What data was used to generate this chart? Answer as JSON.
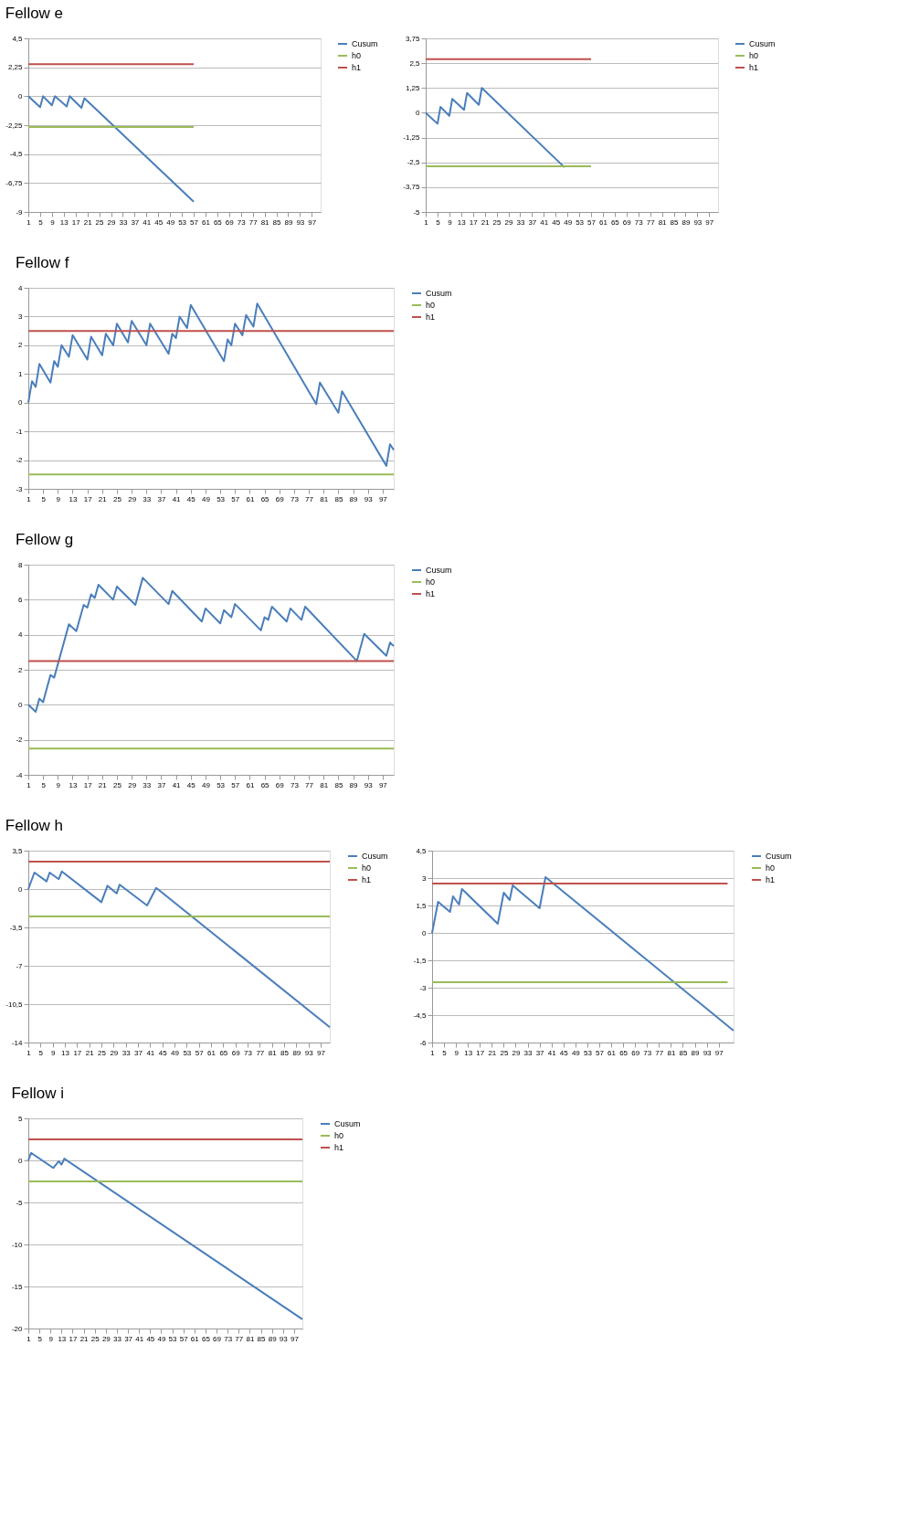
{
  "chart_data": [
    {
      "type": "line",
      "title": "Fellow e",
      "xlim": [
        1,
        100
      ],
      "xticks": [
        1,
        5,
        9,
        13,
        17,
        21,
        25,
        29,
        33,
        37,
        41,
        45,
        49,
        53,
        57,
        61,
        65,
        69,
        73,
        77,
        81,
        85,
        89,
        93,
        97
      ],
      "ylim": [
        -9,
        4.5
      ],
      "yticks": [
        -9,
        {
          "value": -6.75,
          "label": "-6,75"
        },
        {
          "value": -4.5,
          "label": "-4,5"
        },
        {
          "value": -2.25,
          "label": "-2,25"
        },
        0,
        {
          "value": 2.25,
          "label": "2,25"
        },
        {
          "value": 4.5,
          "label": "4,5"
        }
      ],
      "grid": "y",
      "legend": "right",
      "line_style": "solid",
      "series": [
        {
          "name": "Cusum",
          "color": "#4a7ebb",
          "x": [
            1,
            5,
            6,
            9,
            10,
            14,
            15,
            19,
            20,
            57
          ],
          "values": [
            0,
            -0.85,
            0,
            -0.7,
            0,
            -0.8,
            0,
            -0.9,
            -0.15,
            -8.2
          ]
        },
        {
          "name": "h0",
          "color": "#9bbb59",
          "x": [
            1,
            57
          ],
          "values": [
            -2.4,
            -2.4
          ]
        },
        {
          "name": "h1",
          "color": "#c0504d",
          "x": [
            1,
            57
          ],
          "values": [
            2.5,
            2.5
          ]
        }
      ]
    },
    {
      "type": "line",
      "xlim": [
        1,
        100
      ],
      "xticks": [
        1,
        5,
        9,
        13,
        17,
        21,
        25,
        29,
        33,
        37,
        41,
        45,
        49,
        53,
        57,
        61,
        65,
        69,
        73,
        77,
        81,
        85,
        89,
        93,
        97
      ],
      "ylim": [
        -5,
        3.75
      ],
      "yticks": [
        -5,
        {
          "value": -3.75,
          "label": "-3,75"
        },
        {
          "value": -2.5,
          "label": "-2,5"
        },
        {
          "value": -1.25,
          "label": "-1,25"
        },
        0,
        {
          "value": 1.25,
          "label": "1,25"
        },
        {
          "value": 2.5,
          "label": "2,5"
        },
        {
          "value": 3.75,
          "label": "3,75"
        }
      ],
      "grid": "y",
      "legend": "right",
      "line_style": "solid",
      "series": [
        {
          "name": "Cusum",
          "color": "#4a7ebb",
          "x": [
            1,
            5,
            6,
            9,
            10,
            14,
            15,
            19,
            20,
            48
          ],
          "values": [
            0,
            -0.55,
            0.3,
            -0.15,
            0.7,
            0.15,
            1.0,
            0.4,
            1.25,
            -2.75
          ]
        },
        {
          "name": "h0",
          "color": "#9bbb59",
          "x": [
            1,
            57
          ],
          "values": [
            -2.7,
            -2.7
          ]
        },
        {
          "name": "h1",
          "color": "#c0504d",
          "x": [
            1,
            57
          ],
          "values": [
            2.7,
            2.7
          ]
        }
      ]
    },
    {
      "type": "line",
      "title": "Fellow f",
      "xlim": [
        1,
        100
      ],
      "xticks": [
        1,
        5,
        9,
        13,
        17,
        21,
        25,
        29,
        33,
        37,
        41,
        45,
        49,
        53,
        57,
        61,
        65,
        69,
        73,
        77,
        81,
        85,
        89,
        93,
        97
      ],
      "ylim": [
        -3,
        4
      ],
      "yticks": [
        -3,
        -2,
        -1,
        0,
        1,
        2,
        3,
        4
      ],
      "grid": "y",
      "legend": "right",
      "line_style": "solid",
      "series": [
        {
          "name": "Cusum",
          "color": "#4a7ebb",
          "x": [
            1,
            2,
            3,
            4,
            7,
            8,
            9,
            10,
            12,
            13,
            17,
            18,
            21,
            22,
            24,
            25,
            28,
            29,
            33,
            34,
            39,
            40,
            41,
            42,
            44,
            45,
            54,
            55,
            56,
            57,
            59,
            60,
            62,
            63,
            79,
            80,
            85,
            86,
            98,
            99,
            100
          ],
          "values": [
            0,
            0.75,
            0.55,
            1.35,
            0.7,
            1.45,
            1.25,
            2.0,
            1.6,
            2.35,
            1.5,
            2.3,
            1.65,
            2.4,
            2.0,
            2.75,
            2.1,
            2.85,
            2.0,
            2.75,
            1.7,
            2.4,
            2.25,
            3.0,
            2.6,
            3.4,
            1.45,
            2.2,
            2.0,
            2.75,
            2.35,
            3.05,
            2.65,
            3.45,
            -0.05,
            0.7,
            -0.35,
            0.4,
            -2.2,
            -1.45,
            -1.65
          ]
        },
        {
          "name": "h0",
          "color": "#9bbb59",
          "x": [
            1,
            100
          ],
          "values": [
            -2.5,
            -2.5
          ]
        },
        {
          "name": "h1",
          "color": "#c0504d",
          "x": [
            1,
            100
          ],
          "values": [
            2.5,
            2.5
          ]
        }
      ]
    },
    {
      "type": "line",
      "title": "Fellow g",
      "xlim": [
        1,
        100
      ],
      "xticks": [
        1,
        5,
        9,
        13,
        17,
        21,
        25,
        29,
        33,
        37,
        41,
        45,
        49,
        53,
        57,
        61,
        65,
        69,
        73,
        77,
        81,
        85,
        89,
        93,
        97
      ],
      "ylim": [
        -4,
        8
      ],
      "yticks": [
        -4,
        -2,
        0,
        2,
        4,
        6,
        8
      ],
      "grid": "y",
      "legend": "right",
      "line_style": "solid",
      "series": [
        {
          "name": "Cusum",
          "color": "#4a7ebb",
          "x": [
            1,
            3,
            4,
            5,
            7,
            8,
            12,
            14,
            16,
            17,
            18,
            19,
            20,
            24,
            25,
            30,
            32,
            39,
            40,
            48,
            49,
            53,
            54,
            56,
            57,
            64,
            65,
            66,
            67,
            71,
            72,
            75,
            76,
            90,
            92,
            98,
            99,
            100
          ],
          "values": [
            0,
            -0.4,
            0.35,
            0.15,
            1.7,
            1.55,
            4.6,
            4.2,
            5.7,
            5.55,
            6.3,
            6.1,
            6.85,
            6.0,
            6.75,
            5.7,
            7.25,
            5.75,
            6.5,
            4.75,
            5.5,
            4.65,
            5.4,
            5.0,
            5.75,
            4.25,
            5.0,
            4.85,
            5.6,
            4.75,
            5.5,
            4.85,
            5.6,
            2.5,
            4.05,
            2.8,
            3.55,
            3.35
          ]
        },
        {
          "name": "h0",
          "color": "#9bbb59",
          "x": [
            1,
            100
          ],
          "values": [
            -2.5,
            -2.5
          ]
        },
        {
          "name": "h1",
          "color": "#c0504d",
          "x": [
            1,
            100
          ],
          "values": [
            2.5,
            2.5
          ]
        }
      ]
    },
    {
      "type": "line",
      "title": "Fellow h",
      "xlim": [
        1,
        100
      ],
      "xticks": [
        1,
        5,
        9,
        13,
        17,
        21,
        25,
        29,
        33,
        37,
        41,
        45,
        49,
        53,
        57,
        61,
        65,
        69,
        73,
        77,
        81,
        85,
        89,
        93,
        97
      ],
      "ylim": [
        -14,
        3.5
      ],
      "yticks": [
        -14,
        {
          "value": -10.5,
          "label": "-10,5"
        },
        -7,
        {
          "value": -3.5,
          "label": "-3,5"
        },
        0,
        {
          "value": 3.5,
          "label": "3,5"
        }
      ],
      "grid": "y",
      "legend": "right",
      "line_style": "solid",
      "series": [
        {
          "name": "Cusum",
          "color": "#4a7ebb",
          "x": [
            1,
            3,
            7,
            8,
            11,
            12,
            25,
            27,
            30,
            31,
            40,
            43,
            100
          ],
          "values": [
            0,
            1.5,
            0.7,
            1.5,
            0.9,
            1.6,
            -1.2,
            0.3,
            -0.4,
            0.4,
            -1.5,
            0.1,
            -12.6
          ]
        },
        {
          "name": "h0",
          "color": "#9bbb59",
          "x": [
            1,
            100
          ],
          "values": [
            -2.5,
            -2.5
          ]
        },
        {
          "name": "h1",
          "color": "#c0504d",
          "x": [
            1,
            100
          ],
          "values": [
            2.5,
            2.5
          ]
        }
      ]
    },
    {
      "type": "line",
      "xlim": [
        1,
        102
      ],
      "xticks": [
        1,
        5,
        9,
        13,
        17,
        21,
        25,
        29,
        33,
        37,
        41,
        45,
        49,
        53,
        57,
        61,
        65,
        69,
        73,
        77,
        81,
        85,
        89,
        93,
        97
      ],
      "ylim": [
        -6,
        4.5
      ],
      "yticks": [
        -6,
        {
          "value": -4.5,
          "label": "-4,5"
        },
        -3,
        {
          "value": -1.5,
          "label": "-1,5"
        },
        0,
        {
          "value": 1.5,
          "label": "1,5"
        },
        3,
        {
          "value": 4.5,
          "label": "4,5"
        }
      ],
      "grid": "y",
      "legend": "right",
      "line_style": "solid",
      "series": [
        {
          "name": "Cusum",
          "color": "#4a7ebb",
          "x": [
            1,
            3,
            7,
            8,
            10,
            11,
            23,
            25,
            27,
            28,
            37,
            39,
            102
          ],
          "values": [
            0,
            1.7,
            1.15,
            2.0,
            1.55,
            2.4,
            0.5,
            2.2,
            1.8,
            2.6,
            1.35,
            3.05,
            -5.35
          ]
        },
        {
          "name": "h0",
          "color": "#9bbb59",
          "x": [
            1,
            100
          ],
          "values": [
            -2.7,
            -2.7
          ]
        },
        {
          "name": "h1",
          "color": "#c0504d",
          "x": [
            1,
            100
          ],
          "values": [
            2.7,
            2.7
          ]
        }
      ]
    },
    {
      "type": "line",
      "title": "Fellow i",
      "xlim": [
        1,
        100
      ],
      "xticks": [
        1,
        5,
        9,
        13,
        17,
        21,
        25,
        29,
        33,
        37,
        41,
        45,
        49,
        53,
        57,
        61,
        65,
        69,
        73,
        77,
        81,
        85,
        89,
        93,
        97
      ],
      "ylim": [
        -20,
        5
      ],
      "yticks": [
        -20,
        -15,
        -10,
        -5,
        0,
        5
      ],
      "grid": "y",
      "legend": "right",
      "line_style": "solid",
      "series": [
        {
          "name": "Cusum",
          "color": "#4a7ebb",
          "x": [
            1,
            2,
            10,
            12,
            13,
            14,
            100
          ],
          "values": [
            0,
            0.9,
            -0.9,
            -0.1,
            -0.5,
            0.2,
            -18.9
          ]
        },
        {
          "name": "h0",
          "color": "#9bbb59",
          "x": [
            1,
            100
          ],
          "values": [
            -2.5,
            -2.5
          ]
        },
        {
          "name": "h1",
          "color": "#c0504d",
          "x": [
            1,
            100
          ],
          "values": [
            2.5,
            2.5
          ]
        }
      ]
    }
  ]
}
